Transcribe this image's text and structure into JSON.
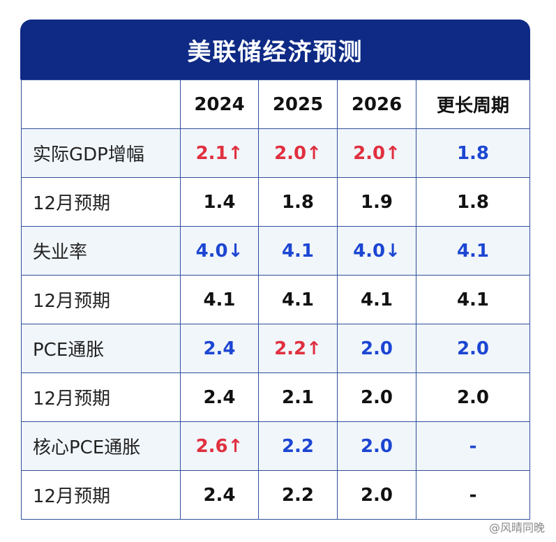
{
  "title": "美联储经济预测",
  "columns": [
    "",
    "2024",
    "2025",
    "2026",
    "更长周期"
  ],
  "colors": {
    "up": "#e0303f",
    "down": "#1c46d2",
    "neutral": "#111111",
    "header_bg": "#0e2a85"
  },
  "rows": [
    {
      "label": "实际GDP增幅",
      "cells": [
        {
          "value": "2.1",
          "arrow": "↑",
          "color": "red"
        },
        {
          "value": "2.0",
          "arrow": "↑",
          "color": "red"
        },
        {
          "value": "2.0",
          "arrow": "↑",
          "color": "red"
        },
        {
          "value": "1.8",
          "arrow": "",
          "color": "blue"
        }
      ]
    },
    {
      "label": "12月预期",
      "cells": [
        {
          "value": "1.4",
          "arrow": "",
          "color": "black"
        },
        {
          "value": "1.8",
          "arrow": "",
          "color": "black"
        },
        {
          "value": "1.9",
          "arrow": "",
          "color": "black"
        },
        {
          "value": "1.8",
          "arrow": "",
          "color": "black"
        }
      ]
    },
    {
      "label": "失业率",
      "cells": [
        {
          "value": "4.0",
          "arrow": "↓",
          "color": "blue"
        },
        {
          "value": "4.1",
          "arrow": "",
          "color": "blue"
        },
        {
          "value": "4.0",
          "arrow": "↓",
          "color": "blue"
        },
        {
          "value": "4.1",
          "arrow": "",
          "color": "blue"
        }
      ]
    },
    {
      "label": "12月预期",
      "cells": [
        {
          "value": "4.1",
          "arrow": "",
          "color": "black"
        },
        {
          "value": "4.1",
          "arrow": "",
          "color": "black"
        },
        {
          "value": "4.1",
          "arrow": "",
          "color": "black"
        },
        {
          "value": "4.1",
          "arrow": "",
          "color": "black"
        }
      ]
    },
    {
      "label": "PCE通胀",
      "cells": [
        {
          "value": "2.4",
          "arrow": "",
          "color": "blue"
        },
        {
          "value": "2.2",
          "arrow": "↑",
          "color": "red"
        },
        {
          "value": "2.0",
          "arrow": "",
          "color": "blue"
        },
        {
          "value": "2.0",
          "arrow": "",
          "color": "blue"
        }
      ]
    },
    {
      "label": "12月预期",
      "cells": [
        {
          "value": "2.4",
          "arrow": "",
          "color": "black"
        },
        {
          "value": "2.1",
          "arrow": "",
          "color": "black"
        },
        {
          "value": "2.0",
          "arrow": "",
          "color": "black"
        },
        {
          "value": "2.0",
          "arrow": "",
          "color": "black"
        }
      ]
    },
    {
      "label": "核心PCE通胀",
      "cells": [
        {
          "value": "2.6",
          "arrow": "↑",
          "color": "red"
        },
        {
          "value": "2.2",
          "arrow": "",
          "color": "blue"
        },
        {
          "value": "2.0",
          "arrow": "",
          "color": "blue"
        },
        {
          "value": "-",
          "arrow": "",
          "color": "blue"
        }
      ]
    },
    {
      "label": "12月预期",
      "cells": [
        {
          "value": "2.4",
          "arrow": "",
          "color": "black"
        },
        {
          "value": "2.2",
          "arrow": "",
          "color": "black"
        },
        {
          "value": "2.0",
          "arrow": "",
          "color": "black"
        },
        {
          "value": "-",
          "arrow": "",
          "color": "black"
        }
      ]
    }
  ],
  "watermark": "@风晴同晚"
}
